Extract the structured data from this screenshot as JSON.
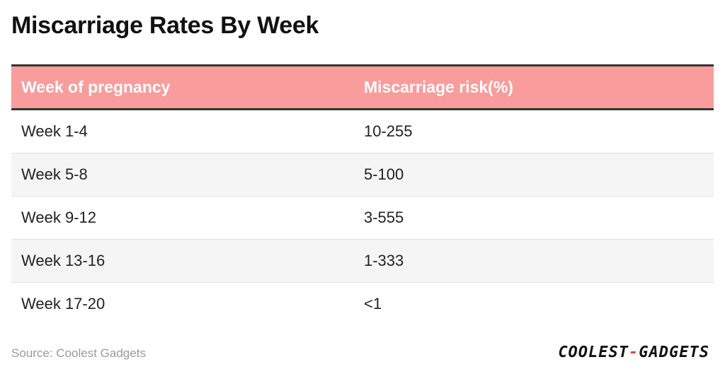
{
  "title": "Miscarriage Rates By Week",
  "chart_data": {
    "type": "table",
    "columns": [
      "Week of pregnancy",
      "Miscarriage risk(%)"
    ],
    "rows": [
      [
        "Week 1-4",
        "10-255"
      ],
      [
        "Week 5-8",
        "5-100"
      ],
      [
        "Week 9-12",
        "3-555"
      ],
      [
        "Week 13-16",
        "1-333"
      ],
      [
        "Week 17-20",
        "<1"
      ]
    ]
  },
  "footer": {
    "source": "Source: Coolest Gadgets",
    "logo_left": "COOLEST",
    "logo_dash": "-",
    "logo_right": "GADGETS"
  },
  "colors": {
    "header_bg": "#f89d9b",
    "header_text": "#ffffff",
    "alt_row_bg": "#f5f5f5",
    "logo_accent": "#e8443a"
  }
}
